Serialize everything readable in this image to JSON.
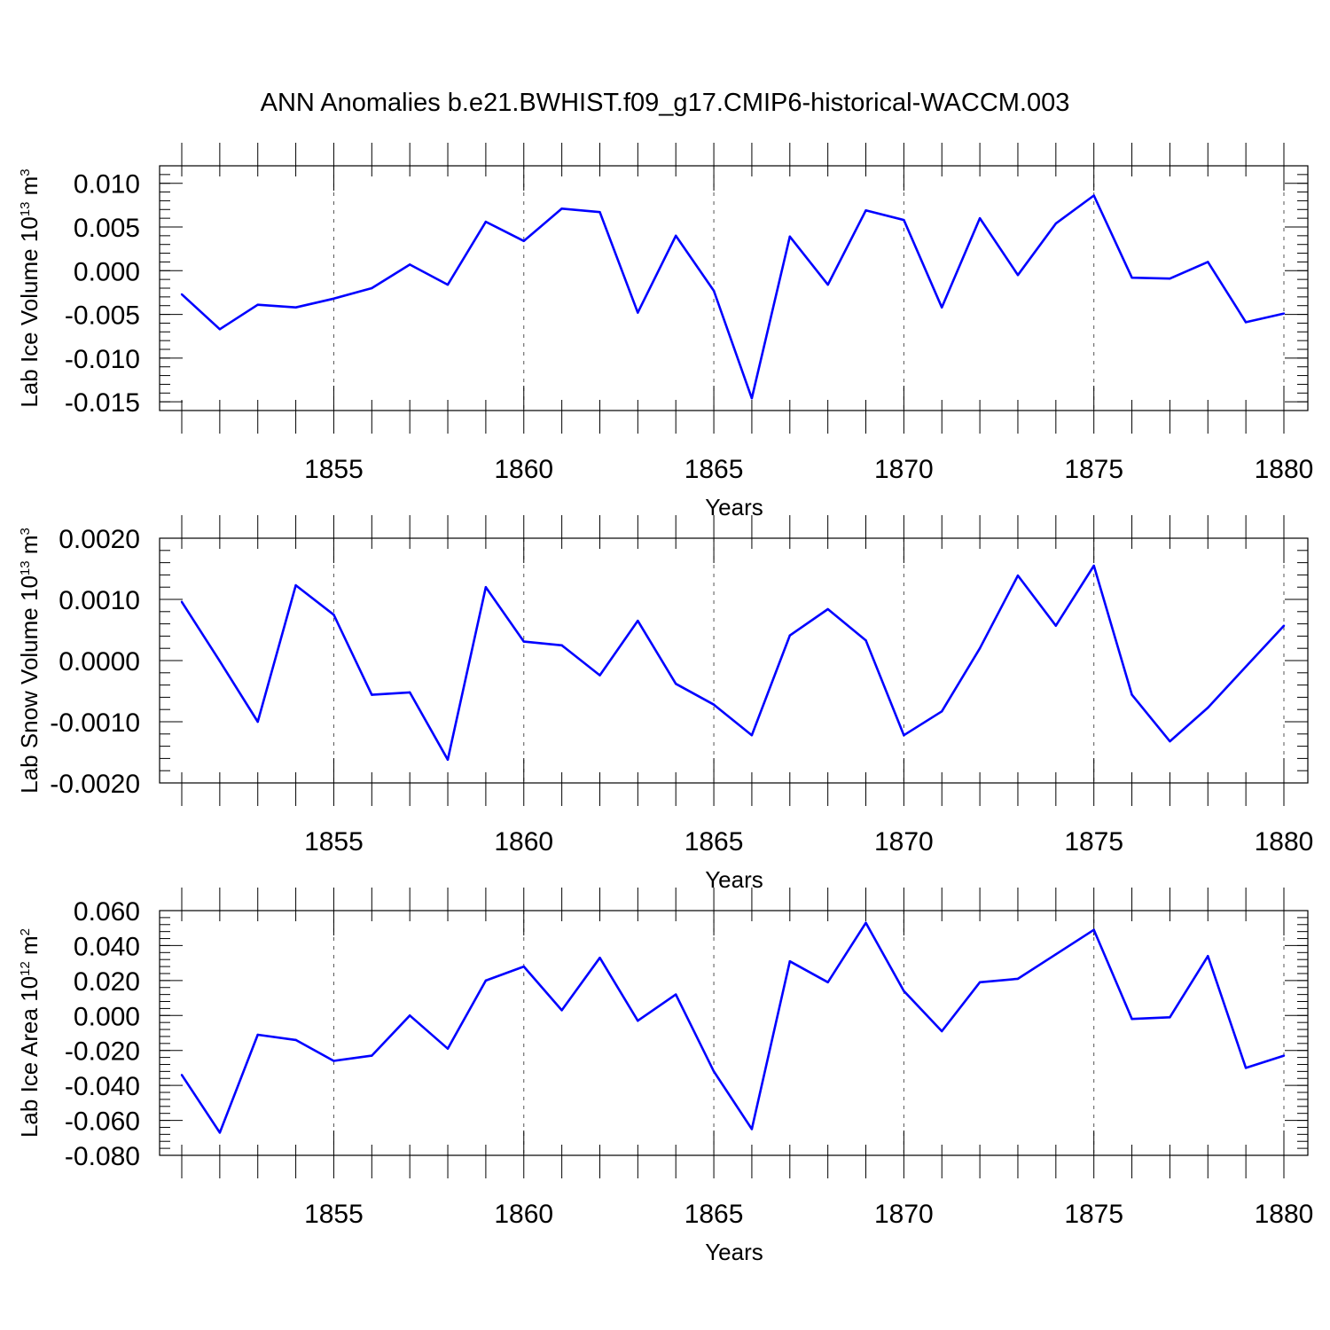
{
  "chart_data": {
    "title": "ANN Anomalies b.e21.BWHIST.f09_g17.CMIP6-historical-WACCM.003",
    "type": "line",
    "line_color": "#0000ff",
    "grid_color": "#555555",
    "x_grid": "dashed vertical at labeled years",
    "x": [
      1851,
      1852,
      1853,
      1854,
      1855,
      1856,
      1857,
      1858,
      1859,
      1860,
      1861,
      1862,
      1863,
      1864,
      1865,
      1866,
      1867,
      1868,
      1869,
      1870,
      1871,
      1872,
      1873,
      1874,
      1875,
      1876,
      1877,
      1878,
      1879,
      1880
    ],
    "xlim": [
      1851,
      1880
    ],
    "xticks": [
      1855,
      1860,
      1865,
      1870,
      1875,
      1880
    ],
    "xtick_labels": [
      "1855",
      "1860",
      "1865",
      "1870",
      "1875",
      "1880"
    ],
    "panels": [
      {
        "name": "ice-volume",
        "ylabel": {
          "main": "Lab Ice Volume 10",
          "exp": "13",
          "unit": " m",
          "unit_exp": "3"
        },
        "xlabel": "Years",
        "ylim": [
          -0.016,
          0.012
        ],
        "yticks": [
          0.01,
          0.005,
          0.0,
          -0.005,
          -0.01,
          -0.015
        ],
        "ytick_labels": [
          "0.010",
          "0.005",
          "0.000",
          "-0.005",
          "-0.010",
          "-0.015"
        ],
        "values": [
          -0.0027,
          -0.0067,
          -0.0039,
          -0.0042,
          -0.0032,
          -0.002,
          0.0007,
          -0.0016,
          0.0056,
          0.0034,
          0.0071,
          0.0067,
          -0.0048,
          0.004,
          -0.0023,
          -0.0146,
          0.0039,
          -0.0016,
          0.0069,
          0.0058,
          -0.0042,
          0.006,
          -0.0005,
          0.0054,
          0.0086,
          -0.0008,
          -0.0009,
          0.001,
          -0.0059,
          -0.0049
        ]
      },
      {
        "name": "snow-volume",
        "ylabel": {
          "main": "Lab Snow Volume 10",
          "exp": "13",
          "unit": " m",
          "unit_exp": "3"
        },
        "xlabel": "Years",
        "ylim": [
          -0.002,
          0.002
        ],
        "yticks": [
          0.002,
          0.001,
          0.0,
          -0.001,
          -0.002
        ],
        "ytick_labels": [
          "0.0020",
          "0.0010",
          "0.0000",
          "-0.0010",
          "-0.0020"
        ],
        "values": [
          0.00096,
          -1e-05,
          -0.001,
          0.00123,
          0.00075,
          -0.00056,
          -0.00052,
          -0.00162,
          0.0012,
          0.00031,
          0.00025,
          -0.00024,
          0.00065,
          -0.00038,
          -0.00072,
          -0.00122,
          0.00041,
          0.00084,
          0.00033,
          -0.00122,
          -0.00083,
          0.0002,
          0.00139,
          0.00057,
          0.00155,
          -0.00056,
          -0.00132,
          -0.00077,
          -0.0001,
          0.00057
        ]
      },
      {
        "name": "ice-area",
        "ylabel": {
          "main": "Lab Ice Area 10",
          "exp": "12",
          "unit": " m",
          "unit_exp": "2"
        },
        "xlabel": "Years",
        "ylim": [
          -0.08,
          0.06
        ],
        "yticks": [
          0.06,
          0.04,
          0.02,
          0.0,
          -0.02,
          -0.04,
          -0.06,
          -0.08
        ],
        "ytick_labels": [
          "0.060",
          "0.040",
          "0.020",
          "0.000",
          "-0.020",
          "-0.040",
          "-0.060",
          "-0.080"
        ],
        "values": [
          -0.034,
          -0.067,
          -0.011,
          -0.014,
          -0.026,
          -0.023,
          0.0,
          -0.019,
          0.02,
          0.028,
          0.003,
          0.033,
          -0.003,
          0.012,
          -0.032,
          -0.065,
          0.031,
          0.019,
          0.053,
          0.014,
          -0.009,
          0.019,
          0.021,
          0.035,
          0.049,
          -0.002,
          -0.001,
          0.034,
          -0.03,
          -0.023
        ]
      }
    ]
  }
}
